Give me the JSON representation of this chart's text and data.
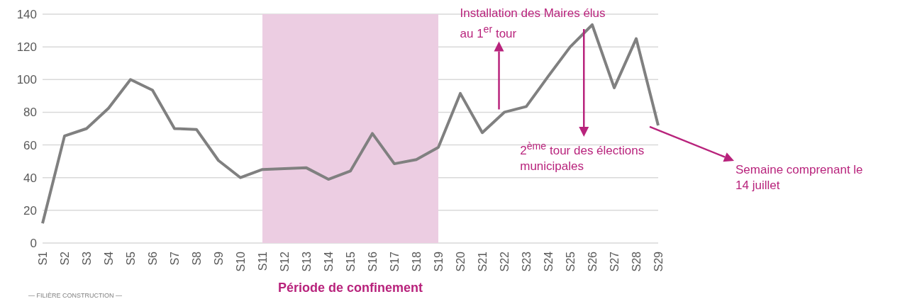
{
  "chart_data": {
    "type": "line",
    "categories": [
      "S1",
      "S2",
      "S3",
      "S4",
      "S5",
      "S6",
      "S7",
      "S8",
      "S9",
      "S10",
      "S11",
      "S12",
      "S13",
      "S14",
      "S15",
      "S16",
      "S17",
      "S18",
      "S19",
      "S20",
      "S21",
      "S22",
      "S23",
      "S24",
      "S25",
      "S26",
      "S27",
      "S28",
      "S29"
    ],
    "series": [
      {
        "color": "#808080",
        "values": [
          12,
          65.5,
          70,
          82.5,
          100,
          93.5,
          70,
          69.5,
          50.5,
          40,
          45,
          45.5,
          46,
          39,
          44,
          67,
          48.5,
          51,
          58.5,
          91.5,
          67.5,
          80,
          83.5,
          102,
          120,
          133.5,
          95,
          125,
          72
        ]
      }
    ],
    "ylim": [
      0,
      140
    ],
    "yticks": [
      0,
      20,
      40,
      60,
      80,
      100,
      120,
      140
    ],
    "grid": "y",
    "legend": false,
    "marker": "none",
    "line_style": "solid",
    "bands": [
      {
        "axis": "x",
        "from": "S11",
        "to": "S19",
        "label": "Période de confinement",
        "color": "#eccde2"
      }
    ],
    "annotations": [
      {
        "text": "Installation des Maires élus au 1$^{er}$ tour",
        "x": "S22",
        "y": 80
      },
      "2$^{ème}$ tour des élections municipales",
      "Semaine comprenant le 14 juillet",
      "— FILIÈRE CONSTRUCTION —"
    ]
  }
}
